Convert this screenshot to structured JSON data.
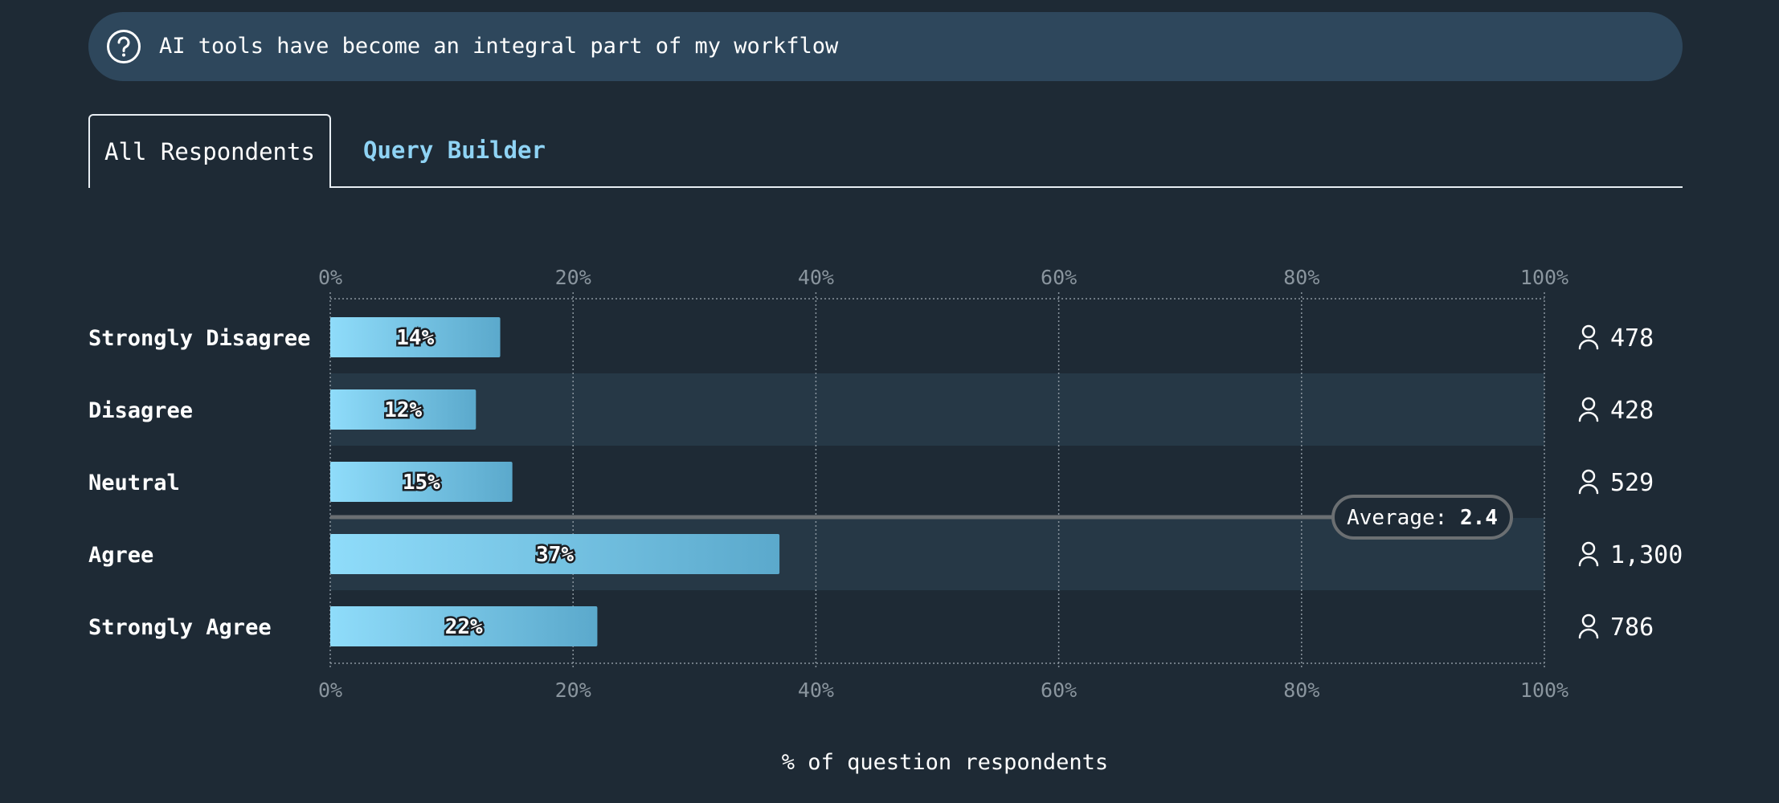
{
  "question": {
    "text": "AI tools have become an integral part of my workflow",
    "icon": "question-circle-icon"
  },
  "tabs": [
    {
      "label": "All Respondents",
      "active": true
    },
    {
      "label": "Query Builder",
      "active": false
    }
  ],
  "chart_data": {
    "type": "bar",
    "orientation": "horizontal",
    "categories": [
      "Strongly Disagree",
      "Disagree",
      "Neutral",
      "Agree",
      "Strongly Agree"
    ],
    "values": [
      14,
      12,
      15,
      37,
      22
    ],
    "value_labels": [
      "14%",
      "12%",
      "15%",
      "37%",
      "22%"
    ],
    "counts": [
      "478",
      "428",
      "529",
      "1,300",
      "786"
    ],
    "count_icon": "person-icon",
    "xlim": [
      0,
      100
    ],
    "ticks": [
      0,
      20,
      40,
      60,
      80,
      100
    ],
    "tick_labels": [
      "0%",
      "20%",
      "40%",
      "60%",
      "80%",
      "100%"
    ],
    "xlabel": "% of question respondents",
    "grid": true,
    "average": {
      "label": "Average:",
      "value": "2.4",
      "position_between_categories": [
        2,
        3
      ]
    },
    "colors": {
      "bar_start": "#8fdcfa",
      "bar_end": "#5ba9cc",
      "background": "#1e2a35",
      "stripe": "#263846",
      "average_line": "#6b6f72"
    }
  }
}
